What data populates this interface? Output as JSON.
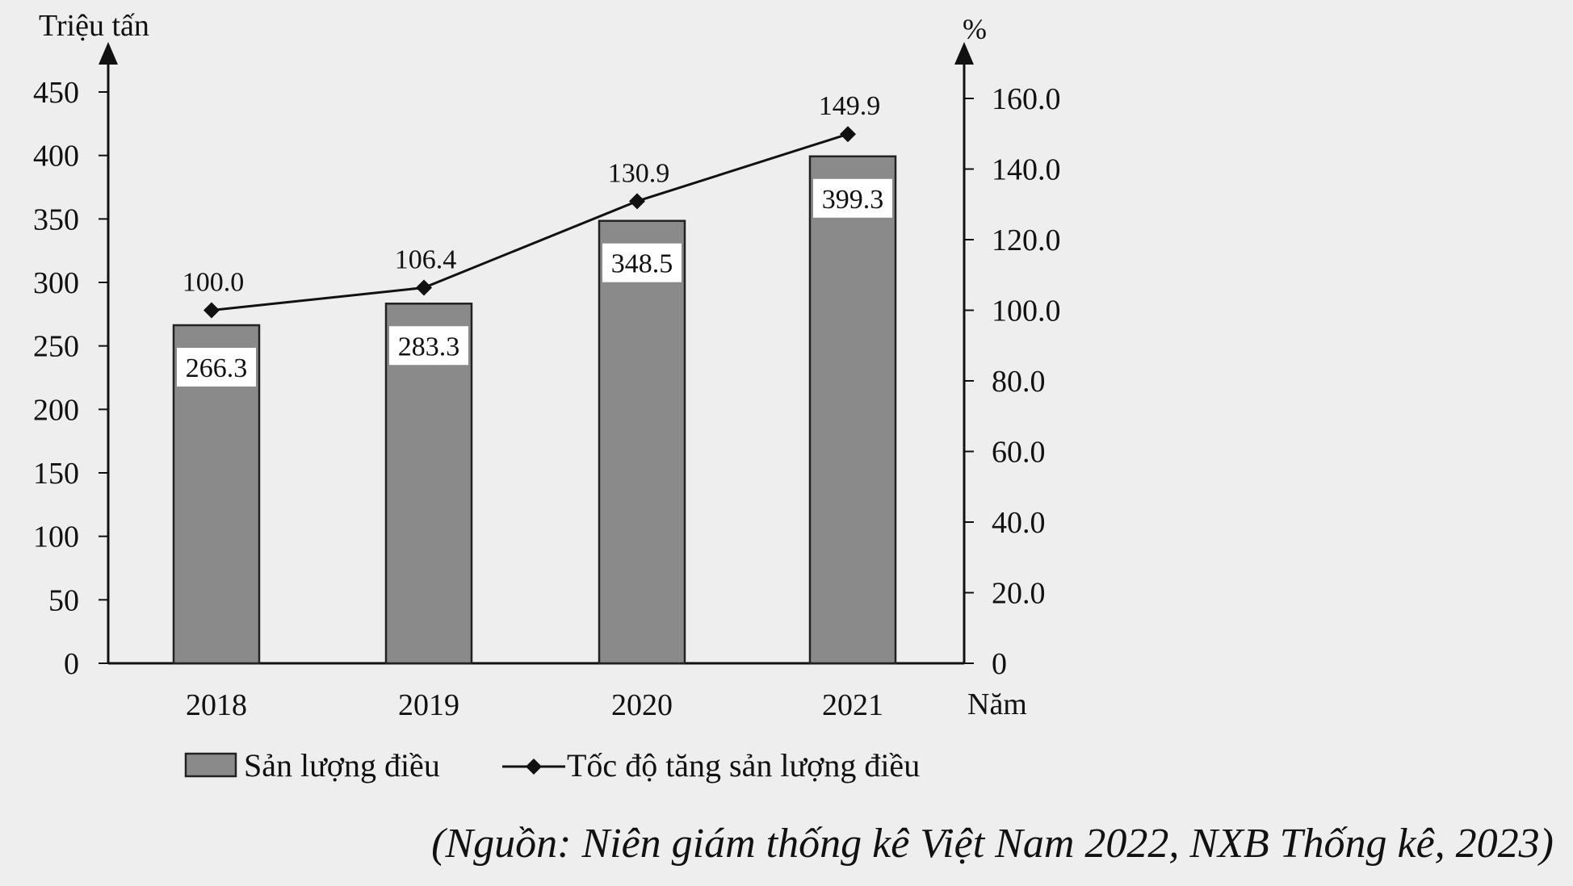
{
  "chart_data": {
    "type": "bar",
    "title": "",
    "categories": [
      "2018",
      "2019",
      "2020",
      "2021"
    ],
    "xlabel": "Năm",
    "y_left": {
      "label": "Triệu tấn",
      "min": 0,
      "max": 450,
      "ticks": [
        "0",
        "50",
        "100",
        "150",
        "200",
        "250",
        "300",
        "350",
        "400",
        "450"
      ]
    },
    "y_right": {
      "label": "%",
      "min": 0,
      "max": 160,
      "ticks": [
        "0",
        "20.0",
        "40.0",
        "60.0",
        "80.0",
        "100.0",
        "120.0",
        "140.0",
        "160.0"
      ]
    },
    "series": [
      {
        "name": "Sản lượng điều",
        "type": "bar",
        "axis": "left",
        "values": [
          266.3,
          283.3,
          348.5,
          399.3
        ],
        "labels": [
          "266.3",
          "283.3",
          "348.5",
          "399.3"
        ],
        "color": "#8a8a8a"
      },
      {
        "name": "Tốc độ tăng sản lượng điều",
        "type": "line",
        "axis": "right",
        "values": [
          100.0,
          106.4,
          130.9,
          149.9
        ],
        "labels": [
          "100.0",
          "106.4",
          "130.9",
          "149.9"
        ],
        "color": "#111111",
        "marker": "diamond"
      }
    ],
    "grid": false,
    "legend_position": "bottom"
  },
  "source_note": "(Nguồn: Niên giám thống kê Việt Nam 2022, NXB Thống kê, 2023)"
}
